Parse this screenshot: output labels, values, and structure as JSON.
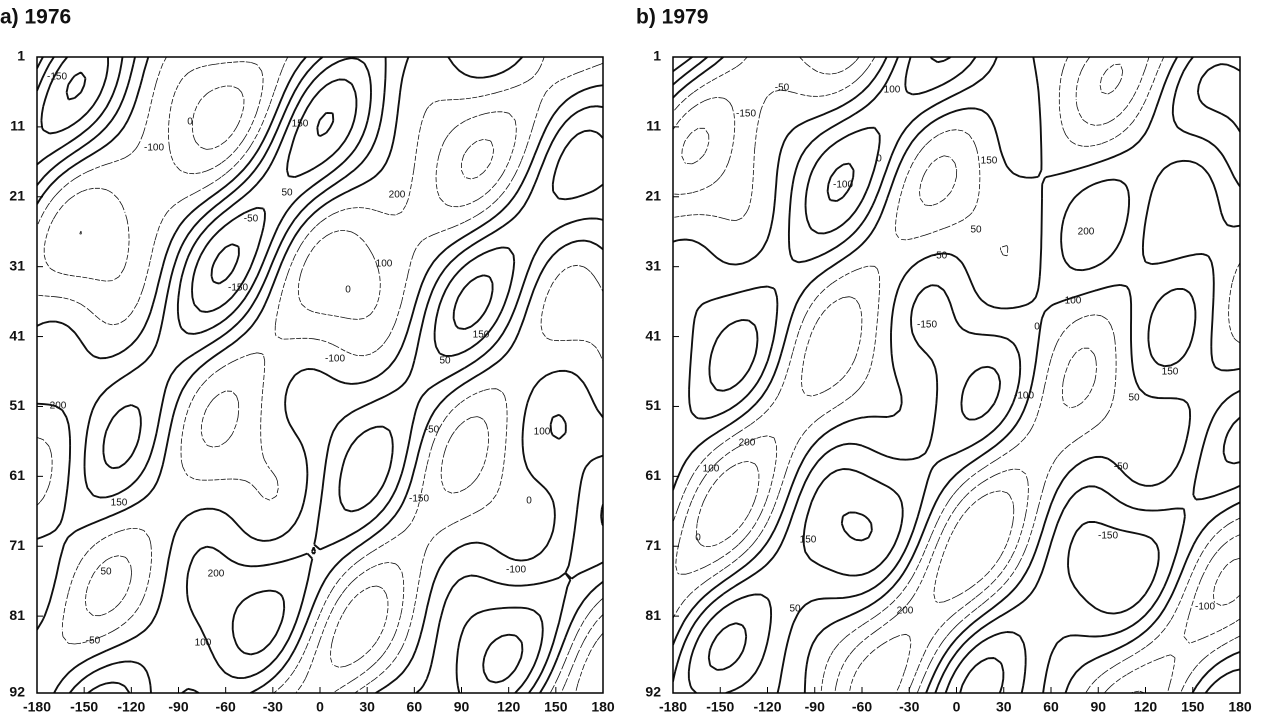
{
  "chart_data": [
    {
      "type": "contour",
      "title": "a) 1976",
      "xlim": [
        -180,
        180
      ],
      "xticks": [
        -180,
        -150,
        -120,
        -90,
        -60,
        -30,
        0,
        30,
        60,
        90,
        120,
        150,
        180
      ],
      "ylim": [
        1,
        92
      ],
      "yticks": [
        1,
        11,
        21,
        31,
        41,
        51,
        61,
        71,
        81,
        92
      ],
      "contour_levels": [
        -150,
        -100,
        -50,
        0,
        50,
        100,
        150,
        200
      ]
    },
    {
      "type": "contour",
      "title": "b) 1979",
      "xlim": [
        -180,
        180
      ],
      "xticks": [
        -180,
        -150,
        -120,
        -90,
        -60,
        -30,
        0,
        30,
        60,
        90,
        120,
        150,
        180
      ],
      "ylim": [
        1,
        92
      ],
      "yticks": [
        1,
        11,
        21,
        31,
        41,
        51,
        61,
        71,
        81,
        92
      ],
      "contour_levels": [
        -150,
        -100,
        -50,
        0,
        50,
        100,
        150,
        200
      ]
    }
  ]
}
